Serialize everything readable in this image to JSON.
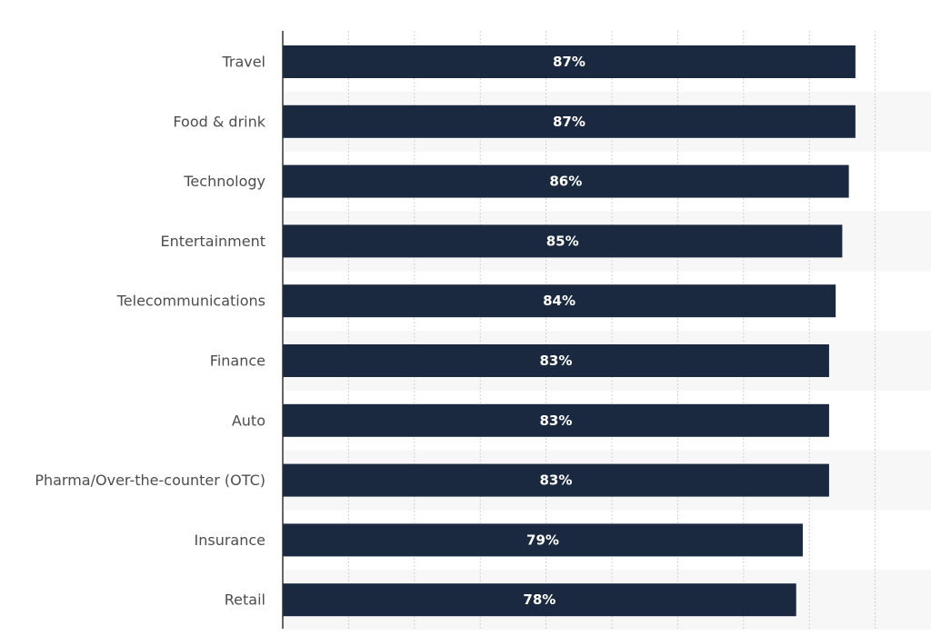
{
  "chart_data": {
    "type": "bar",
    "orientation": "horizontal",
    "categories": [
      "Travel",
      "Food & drink",
      "Technology",
      "Entertainment",
      "Telecommunications",
      "Finance",
      "Auto",
      "Pharma/Over-the-counter (OTC)",
      "Insurance",
      "Retail"
    ],
    "values": [
      87,
      87,
      86,
      85,
      84,
      83,
      83,
      83,
      79,
      78
    ],
    "value_labels": [
      "87%",
      "87%",
      "86%",
      "85%",
      "84%",
      "83%",
      "83%",
      "83%",
      "79%",
      "78%"
    ],
    "unit": "%",
    "xlim": [
      0,
      90
    ],
    "grid": true,
    "bar_color": "#1a2940",
    "band_color": "#f7f7f7",
    "label_color": "#4d4d4d"
  }
}
